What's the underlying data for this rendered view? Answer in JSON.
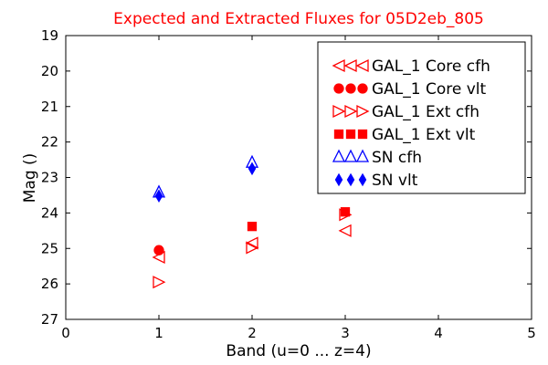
{
  "chart_data": {
    "type": "scatter",
    "title": "Expected and Extracted Fluxes for 05D2eb_805",
    "title_color": "#ff0000",
    "xlabel": "Band (u=0 ... z=4)",
    "ylabel": "Mag ()",
    "xlim": [
      0,
      5
    ],
    "ylim": [
      27,
      19
    ],
    "y_inverted": true,
    "xticks": [
      "0",
      "1",
      "2",
      "3",
      "4",
      "5"
    ],
    "xtick_values": [
      0,
      1,
      2,
      3,
      4,
      5
    ],
    "yticks": [
      "19",
      "20",
      "21",
      "22",
      "23",
      "24",
      "25",
      "26",
      "27"
    ],
    "ytick_values": [
      19,
      20,
      21,
      22,
      23,
      24,
      25,
      26,
      27
    ],
    "legend_position": "top-right",
    "series": [
      {
        "name": "GAL_1 Core cfh",
        "label": "GAL_1 Core cfh",
        "marker": "triangle-left",
        "filled": false,
        "color": "#ff0000",
        "x": [
          1,
          2,
          3
        ],
        "y": [
          25.25,
          24.85,
          24.5
        ]
      },
      {
        "name": "GAL_1 Core vlt",
        "label": "GAL_1 Core vlt",
        "marker": "circle",
        "filled": true,
        "color": "#ff0000",
        "x": [
          1
        ],
        "y": [
          25.05
        ]
      },
      {
        "name": "GAL_1 Ext cfh",
        "label": "GAL_1 Ext cfh",
        "marker": "triangle-right",
        "filled": false,
        "color": "#ff0000",
        "x": [
          1,
          2,
          3
        ],
        "y": [
          25.95,
          24.98,
          24.05
        ]
      },
      {
        "name": "GAL_1 Ext vlt",
        "label": "GAL_1 Ext vlt",
        "marker": "square",
        "filled": true,
        "color": "#ff0000",
        "x": [
          2,
          3
        ],
        "y": [
          24.38,
          23.97
        ]
      },
      {
        "name": "SN cfh",
        "label": "SN cfh",
        "marker": "triangle-up",
        "filled": false,
        "color": "#0000ff",
        "x": [
          1,
          2
        ],
        "y": [
          23.42,
          22.58
        ]
      },
      {
        "name": "SN vlt",
        "label": "SN vlt",
        "marker": "diamond",
        "filled": true,
        "color": "#0000ff",
        "x": [
          1,
          2
        ],
        "y": [
          23.52,
          22.75
        ]
      }
    ]
  }
}
